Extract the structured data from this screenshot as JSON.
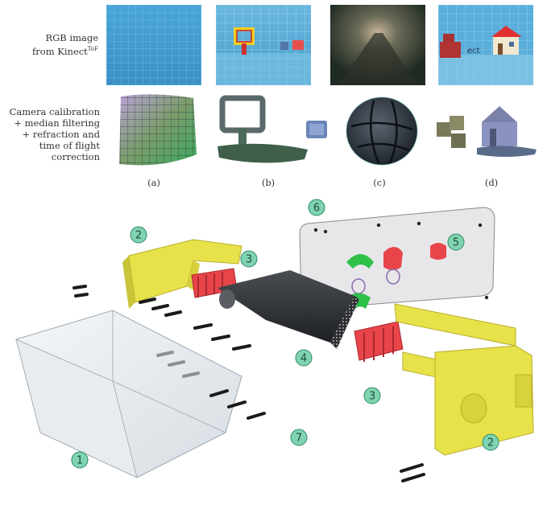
{
  "top_figure": {
    "row1_label_line1": "RGB image",
    "row1_label_line2_prefix": "from Kinect",
    "row1_label_superscript": "ToF",
    "row2_label_lines": [
      "Camera calibration",
      "+ median filtering",
      "+ refraction and",
      "time of flight",
      "correction"
    ],
    "subcaptions": [
      "(a)",
      "(b)",
      "(c)",
      "(d)"
    ],
    "thumb_text_d": "ect"
  },
  "exploded_view": {
    "part_labels": {
      "p1": "1",
      "p2_left": "2",
      "p2_right": "2",
      "p3_left": "3",
      "p3_right": "3",
      "p4": "4",
      "p5": "5",
      "p6": "6",
      "p7": "7"
    },
    "label_fill": "#7fd3b0",
    "label_stroke": "#2f8a66",
    "yellow": "#e8e24a",
    "red": "#e8454a",
    "green": "#2fc04a"
  }
}
